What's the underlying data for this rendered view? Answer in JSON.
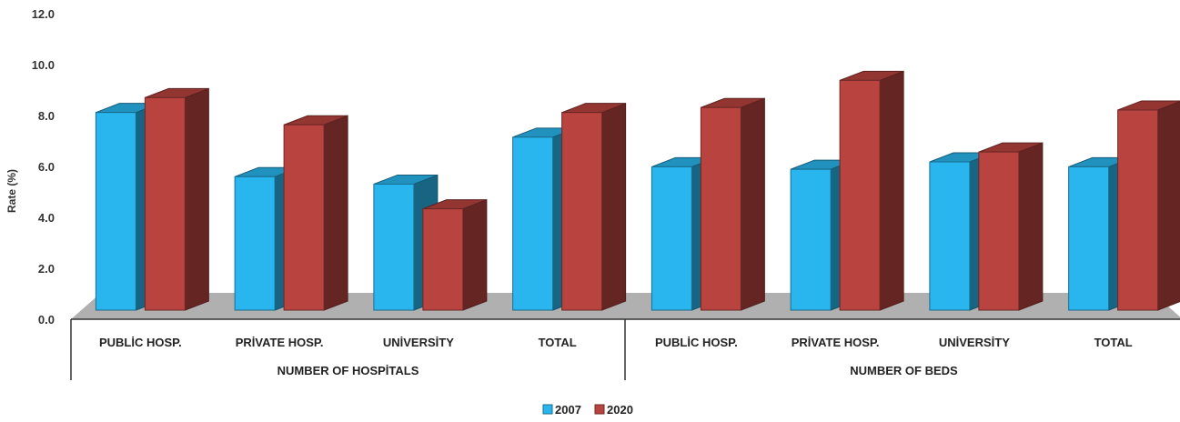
{
  "chart_data": {
    "type": "bar",
    "ylabel": "Rate (%)",
    "ylim": [
      0,
      12
    ],
    "yticks": [
      "0.0",
      "2.0",
      "4.0",
      "6.0",
      "8.0",
      "10.0",
      "12.0"
    ],
    "groups": [
      "NUMBER OF HOSPİTALS",
      "NUMBER OF BEDS"
    ],
    "categories": [
      "PUBLİC HOSP.",
      "PRİVATE HOSP.",
      "UNİVERSİTY",
      "TOTAL",
      "PUBLİC HOSP.",
      "PRİVATE HOSP.",
      "UNİVERSİTY",
      "TOTAL"
    ],
    "series": [
      {
        "name": "2007",
        "color": "#29b6ee",
        "values": [
          8.0,
          5.4,
          5.1,
          7.0,
          5.8,
          5.7,
          6.0,
          5.8
        ]
      },
      {
        "name": "2020",
        "color": "#b8433f",
        "values": [
          8.6,
          7.5,
          4.1,
          8.0,
          8.2,
          9.3,
          6.4,
          8.1
        ]
      }
    ],
    "legend_position": "bottom",
    "grid": false
  }
}
